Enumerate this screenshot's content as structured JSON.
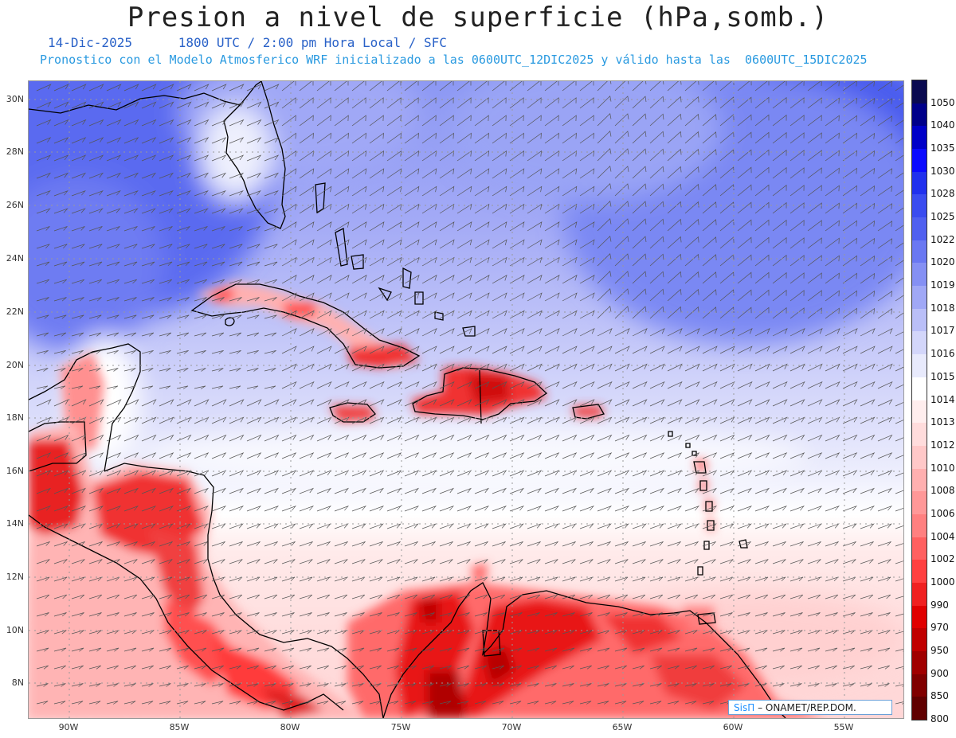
{
  "title": "Presion a nivel de superficie (hPa,somb.)",
  "date": "14-Dic-2025",
  "time_info": "1800 UTC / 2:00 pm Hora Local / SFC",
  "forecast_info": "Pronostico con el Modelo Atmosferico WRF inicializado a las 0600UTC_12DIC2025 y válido hasta las  0600UTC_15DIC2025",
  "lat_labels": [
    "30N",
    "28N",
    "26N",
    "24N",
    "22N",
    "20N",
    "18N",
    "16N",
    "14N",
    "12N",
    "10N",
    "8N"
  ],
  "lon_labels": [
    "90W",
    "85W",
    "80W",
    "75W",
    "70W",
    "65W",
    "60W",
    "55W"
  ],
  "legend": {
    "labels": [
      "1050",
      "1040",
      "1035",
      "1030",
      "1028",
      "1025",
      "1022",
      "1020",
      "1019",
      "1018",
      "1017",
      "1016",
      "1015",
      "1014",
      "1013",
      "1012",
      "1010",
      "1008",
      "1006",
      "1004",
      "1002",
      "1000",
      "990",
      "970",
      "950",
      "900",
      "850",
      "800"
    ],
    "colors": [
      "#0a0a50",
      "#00008a",
      "#0000c8",
      "#0a0aff",
      "#2030ee",
      "#3a4cf0",
      "#5060f0",
      "#6a78f2",
      "#8590f4",
      "#a0a8f6",
      "#babff8",
      "#d3d6fa",
      "#e8eafc",
      "#ffffff",
      "#ffeeee",
      "#ffdcdc",
      "#ffc8c8",
      "#ffb0b0",
      "#ff9898",
      "#ff8080",
      "#ff6060",
      "#ff4040",
      "#f02020",
      "#e00000",
      "#c00000",
      "#a00000",
      "#800000",
      "#600000"
    ]
  },
  "credit": {
    "brand": "SisΠ",
    "text": "– ONAMET/REP.DOM."
  },
  "colors": {
    "title": "#222222",
    "date_line": "#2a62c8",
    "forecast_line": "#2a9ae0"
  }
}
